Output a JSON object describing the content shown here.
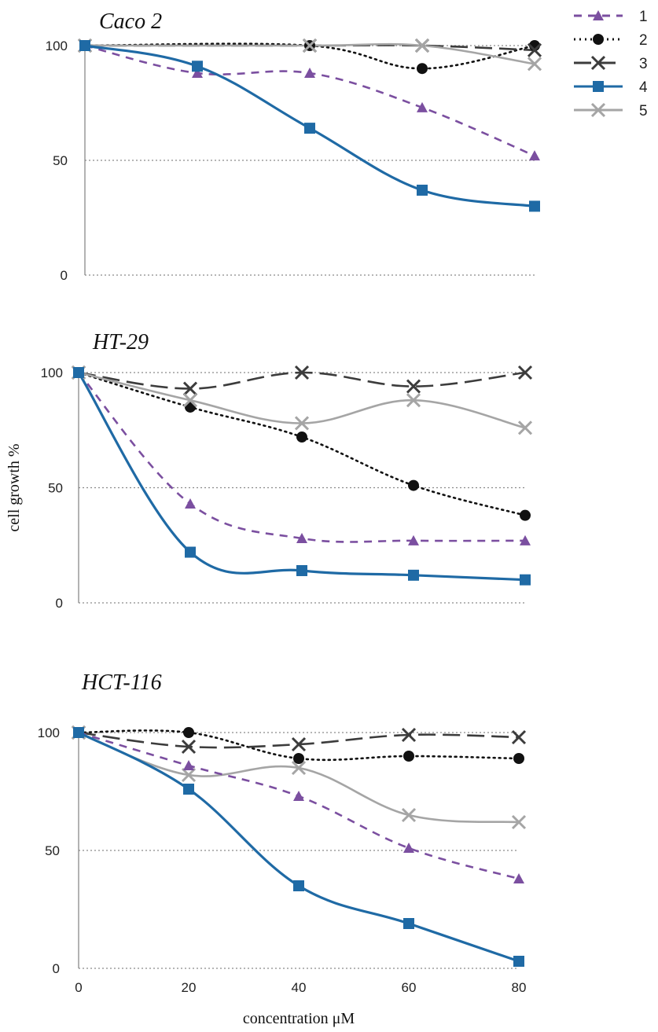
{
  "chart_data": [
    {
      "type": "line",
      "title": "Caco 2",
      "x": [
        0,
        20,
        40,
        60,
        80
      ],
      "ylim": [
        0,
        100
      ],
      "yticks": [
        "0",
        "50",
        "100"
      ],
      "grid": true,
      "series": [
        {
          "name": "1",
          "values": [
            100,
            88,
            88,
            73,
            52
          ]
        },
        {
          "name": "2",
          "values": [
            100,
            null,
            100,
            90,
            100
          ]
        },
        {
          "name": "3",
          "values": [
            100,
            null,
            100,
            100,
            98
          ]
        },
        {
          "name": "4",
          "values": [
            100,
            91,
            64,
            37,
            30
          ]
        },
        {
          "name": "5",
          "values": [
            100,
            null,
            100,
            100,
            92
          ]
        }
      ]
    },
    {
      "type": "line",
      "title": "HT-29",
      "x": [
        0,
        20,
        40,
        60,
        80
      ],
      "ylabel": "cell growth %",
      "ylim": [
        0,
        100
      ],
      "yticks": [
        "0",
        "50",
        "100"
      ],
      "grid": true,
      "series": [
        {
          "name": "1",
          "values": [
            100,
            43,
            28,
            27,
            27
          ]
        },
        {
          "name": "2",
          "values": [
            100,
            85,
            72,
            51,
            38
          ]
        },
        {
          "name": "3",
          "values": [
            100,
            93,
            100,
            94,
            100
          ]
        },
        {
          "name": "4",
          "values": [
            100,
            22,
            14,
            12,
            10
          ]
        },
        {
          "name": "5",
          "values": [
            100,
            88,
            78,
            88,
            76
          ]
        }
      ]
    },
    {
      "type": "line",
      "title": "HCT-116",
      "x": [
        0,
        20,
        40,
        60,
        80
      ],
      "xlabel": "concentration μM",
      "xticks": [
        "0",
        "20",
        "40",
        "60",
        "80"
      ],
      "ylim": [
        0,
        100
      ],
      "yticks": [
        "0",
        "50",
        "100"
      ],
      "grid": true,
      "series": [
        {
          "name": "1",
          "values": [
            100,
            86,
            73,
            51,
            38
          ]
        },
        {
          "name": "2",
          "values": [
            100,
            100,
            89,
            90,
            89
          ]
        },
        {
          "name": "3",
          "values": [
            100,
            94,
            95,
            99,
            98
          ]
        },
        {
          "name": "4",
          "values": [
            100,
            76,
            35,
            19,
            3
          ]
        },
        {
          "name": "5",
          "values": [
            100,
            82,
            85,
            65,
            62
          ]
        }
      ]
    }
  ],
  "legend": {
    "placement": "top-right",
    "items": [
      {
        "label": "1",
        "color": "#7B4FA0",
        "marker": "triangle",
        "dash": "dashed"
      },
      {
        "label": "2",
        "color": "#111111",
        "marker": "circle",
        "dash": "dotted"
      },
      {
        "label": "3",
        "color": "#3C3C3C",
        "marker": "x",
        "dash": "long-dashed"
      },
      {
        "label": "4",
        "color": "#1F6AA5",
        "marker": "square",
        "dash": "solid"
      },
      {
        "label": "5",
        "color": "#A5A5A5",
        "marker": "x",
        "dash": "solid"
      }
    ]
  }
}
